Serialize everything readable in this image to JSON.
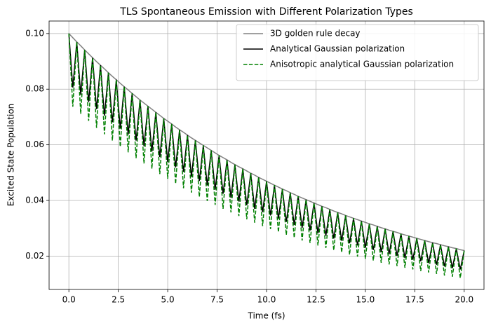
{
  "chart_data": {
    "type": "line",
    "title": "TLS Spontaneous Emission with Different Polarization Types",
    "xlabel": "Time (fs)",
    "ylabel": "Excited State Population",
    "x": [
      0,
      0.2,
      0.4,
      0.6,
      0.8,
      1,
      1.2,
      1.4,
      1.6,
      1.8,
      2,
      2.2,
      2.4,
      2.6,
      2.8,
      3,
      3.2,
      3.4,
      3.6,
      3.8,
      4,
      4.2,
      4.4,
      4.6,
      4.8,
      5,
      5.2,
      5.4,
      5.6,
      5.8,
      6,
      6.2,
      6.4,
      6.6,
      6.8,
      7,
      7.2,
      7.4,
      7.6,
      7.8,
      8,
      8.2,
      8.4,
      8.6,
      8.8,
      9,
      9.2,
      9.4,
      9.6,
      9.8,
      10,
      10.2,
      10.4,
      10.6,
      10.8,
      11,
      11.2,
      11.4,
      11.6,
      11.8,
      12,
      12.2,
      12.4,
      12.6,
      12.8,
      13,
      13.2,
      13.4,
      13.6,
      13.8,
      14,
      14.2,
      14.4,
      14.6,
      14.8,
      15,
      15.2,
      15.4,
      15.6,
      15.8,
      16,
      16.2,
      16.4,
      16.6,
      16.8,
      17,
      17.2,
      17.4,
      17.6,
      17.8,
      18,
      18.2,
      18.4,
      18.6,
      18.8,
      19,
      19.2,
      19.4,
      19.6,
      19.8,
      20
    ],
    "series": [
      {
        "name": "3D golden rule decay",
        "color": "#808080",
        "dash": false,
        "values": [
          0.1,
          0.0985,
          0.097,
          0.0956,
          0.0941,
          0.0927,
          0.0913,
          0.0899,
          0.0886,
          0.0873,
          0.0859,
          0.0846,
          0.0834,
          0.0821,
          0.0809,
          0.0797,
          0.0785,
          0.0773,
          0.0761,
          0.075,
          0.0739,
          0.0728,
          0.0717,
          0.0706,
          0.0695,
          0.0685,
          0.0675,
          0.0664,
          0.0654,
          0.0645,
          0.0635,
          0.0625,
          0.0616,
          0.0607,
          0.0598,
          0.0589,
          0.058,
          0.0571,
          0.0562,
          0.0554,
          0.0546,
          0.0537,
          0.0529,
          0.0521,
          0.0514,
          0.0506,
          0.0498,
          0.0491,
          0.0483,
          0.0476,
          0.0469,
          0.0462,
          0.0455,
          0.0448,
          0.0441,
          0.0435,
          0.0428,
          0.0422,
          0.0415,
          0.0409,
          0.0403,
          0.0397,
          0.0391,
          0.0385,
          0.0379,
          0.0374,
          0.0368,
          0.0362,
          0.0357,
          0.0352,
          0.0346,
          0.0341,
          0.0336,
          0.0331,
          0.0326,
          0.0321,
          0.0316,
          0.0312,
          0.0307,
          0.0302,
          0.0298,
          0.0293,
          0.0289,
          0.0285,
          0.028,
          0.0276,
          0.0272,
          0.0268,
          0.0264,
          0.026,
          0.0256,
          0.0252,
          0.0248,
          0.0245,
          0.0241,
          0.0237,
          0.0234,
          0.023,
          0.0227,
          0.0223,
          0.022
        ]
      },
      {
        "name": "Analytical Gaussian polarization",
        "color": "#000000",
        "dash": false,
        "values": [
          0.1,
          0.0806,
          0.097,
          0.078,
          0.0941,
          0.0754,
          0.0913,
          0.0728,
          0.0886,
          0.0705,
          0.0859,
          0.0681,
          0.0834,
          0.0658,
          0.0809,
          0.0637,
          0.0785,
          0.0615,
          0.0761,
          0.0595,
          0.0739,
          0.0576,
          0.0717,
          0.0556,
          0.0695,
          0.0538,
          0.0675,
          0.0519,
          0.0654,
          0.0503,
          0.0635,
          0.0485,
          0.0616,
          0.047,
          0.0598,
          0.0454,
          0.058,
          0.0439,
          0.0562,
          0.0424,
          0.0546,
          0.041,
          0.0529,
          0.0396,
          0.0514,
          0.0383,
          0.0498,
          0.037,
          0.0483,
          0.0358,
          0.0469,
          0.0346,
          0.0455,
          0.0334,
          0.0441,
          0.0323,
          0.0428,
          0.0312,
          0.0415,
          0.0302,
          0.0403,
          0.0292,
          0.0391,
          0.0282,
          0.0379,
          0.0273,
          0.0368,
          0.0263,
          0.0357,
          0.0255,
          0.0346,
          0.0246,
          0.0336,
          0.0238,
          0.0326,
          0.023,
          0.0316,
          0.0222,
          0.0307,
          0.0214,
          0.0298,
          0.0207,
          0.0289,
          0.0201,
          0.028,
          0.0193,
          0.0272,
          0.0187,
          0.0264,
          0.0181,
          0.0256,
          0.0175,
          0.0248,
          0.0169,
          0.0241,
          0.0163,
          0.0234,
          0.0157,
          0.0227,
          0.0152,
          0.022
        ]
      },
      {
        "name": "Anisotropic analytical Gaussian polarization",
        "color": "#008000",
        "dash": true,
        "values": [
          0.1,
          0.0737,
          0.097,
          0.0711,
          0.0941,
          0.0686,
          0.0913,
          0.0661,
          0.0886,
          0.0638,
          0.0859,
          0.0615,
          0.0834,
          0.0593,
          0.0809,
          0.0573,
          0.0785,
          0.0552,
          0.0761,
          0.0533,
          0.0739,
          0.0514,
          0.0717,
          0.0495,
          0.0695,
          0.0478,
          0.0675,
          0.046,
          0.0654,
          0.0444,
          0.0635,
          0.0428,
          0.0616,
          0.0413,
          0.0598,
          0.0398,
          0.058,
          0.0384,
          0.0562,
          0.037,
          0.0546,
          0.0357,
          0.0529,
          0.0344,
          0.0514,
          0.0332,
          0.0498,
          0.032,
          0.0483,
          0.0308,
          0.0469,
          0.0297,
          0.0455,
          0.0286,
          0.0441,
          0.0276,
          0.0428,
          0.0266,
          0.0415,
          0.0256,
          0.0403,
          0.0247,
          0.0391,
          0.0238,
          0.0379,
          0.0229,
          0.0368,
          0.0221,
          0.0357,
          0.0213,
          0.0346,
          0.0205,
          0.0336,
          0.0198,
          0.0326,
          0.019,
          0.0316,
          0.0184,
          0.0307,
          0.0176,
          0.0298,
          0.017,
          0.0289,
          0.0164,
          0.028,
          0.0158,
          0.0272,
          0.0152,
          0.0264,
          0.0146,
          0.0256,
          0.0141,
          0.0248,
          0.0136,
          0.0241,
          0.013,
          0.0234,
          0.0126,
          0.0227,
          0.0121,
          0.022
        ]
      }
    ],
    "xlim": [
      -1,
      21
    ],
    "ylim": [
      0.008,
      0.1045
    ],
    "xticks": [
      {
        "value": 0,
        "label": "0.0"
      },
      2.5,
      {
        "value": 5,
        "label": "5.0"
      },
      7.5,
      {
        "value": 10,
        "label": "10.0"
      },
      12.5,
      {
        "value": 15,
        "label": "15.0"
      },
      17.5,
      {
        "value": 20,
        "label": "20.0"
      }
    ],
    "yticks": [
      0.02,
      0.04,
      0.06,
      0.08,
      {
        "value": 0.1,
        "label": "0.10"
      }
    ],
    "grid": true,
    "legend": "upper-right"
  }
}
